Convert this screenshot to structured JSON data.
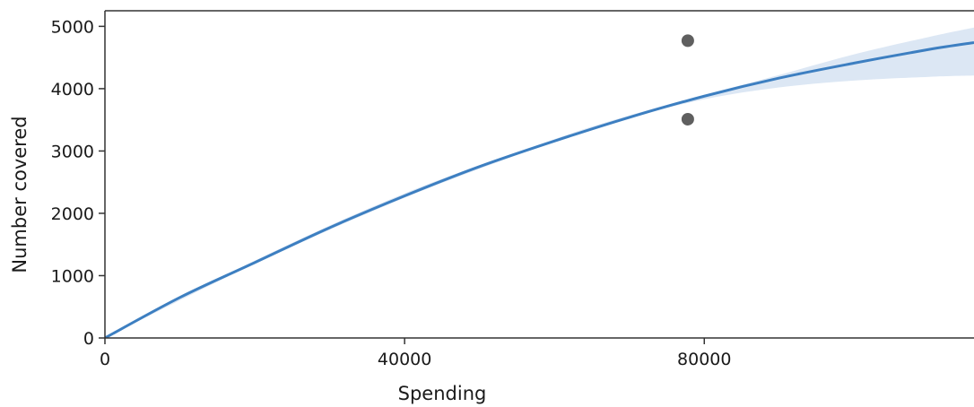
{
  "chart_data": {
    "type": "line",
    "title": "",
    "xlabel": "Spending",
    "ylabel": "Number covered",
    "xlim": [
      0,
      116000
    ],
    "ylim": [
      0,
      5250
    ],
    "x_ticks": [
      0,
      40000,
      80000
    ],
    "y_ticks": [
      0,
      1000,
      2000,
      3000,
      4000,
      5000
    ],
    "grid": false,
    "legend": "none",
    "series": [
      {
        "type": "line",
        "color": "#3d7fc1",
        "x": [
          0,
          10000,
          20000,
          30000,
          40000,
          50000,
          60000,
          70000,
          80000,
          90000,
          100000,
          110000,
          116000
        ],
        "y": [
          0,
          650,
          1210,
          1770,
          2280,
          2750,
          3160,
          3540,
          3880,
          4170,
          4410,
          4630,
          4740
        ]
      },
      {
        "type": "band",
        "color": "#dce7f4",
        "x": [
          0,
          20000,
          40000,
          60000,
          70000,
          80000,
          90000,
          100000,
          110000,
          116000
        ],
        "lower": [
          0,
          1190,
          2250,
          3150,
          3530,
          3830,
          4020,
          4130,
          4190,
          4210
        ],
        "upper": [
          0,
          1240,
          2320,
          3190,
          3570,
          3900,
          4220,
          4550,
          4830,
          4980
        ]
      },
      {
        "type": "scatter",
        "color": "#5f5f5f",
        "x": [
          77800,
          77800
        ],
        "y": [
          4770,
          3510
        ]
      }
    ]
  }
}
